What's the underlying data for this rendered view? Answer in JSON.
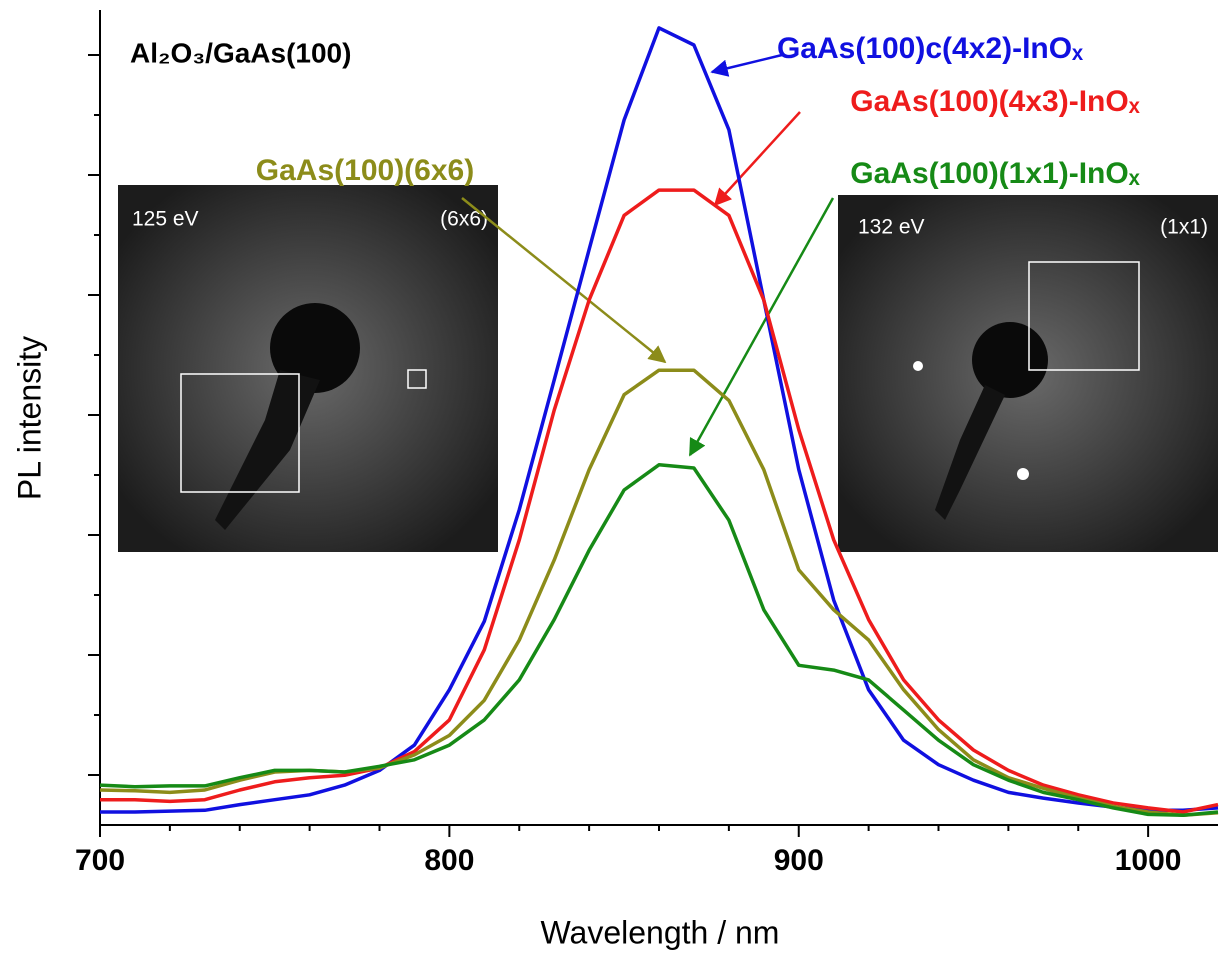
{
  "chart_data": {
    "type": "line",
    "annotation": "Al₂O₃/GaAs(100)",
    "x_label": "Wavelength / nm",
    "y_label": "PL intensity",
    "x": [
      700,
      710,
      720,
      730,
      740,
      750,
      760,
      770,
      780,
      790,
      800,
      810,
      820,
      830,
      840,
      850,
      860,
      870,
      880,
      890,
      900,
      910,
      920,
      930,
      940,
      950,
      960,
      970,
      980,
      990,
      1000,
      1010,
      1020
    ],
    "series": [
      {
        "name": "GaAs(100)c(4x2)-InOₓ",
        "color": "#1010e0",
        "values": [
          1.6,
          1.6,
          1.7,
          1.8,
          2.5,
          3.1,
          3.7,
          4.9,
          6.7,
          9.8,
          16.6,
          25,
          38.7,
          54.6,
          70.6,
          86.5,
          97.8,
          95.7,
          85.3,
          64.4,
          43.6,
          27.6,
          16.6,
          10.4,
          7.4,
          5.5,
          4,
          3.3,
          2.7,
          2.2,
          1.8,
          1.8,
          2.1
        ]
      },
      {
        "name": "GaAs(100)(4x3)-InOₓ",
        "color": "#ee1c1c",
        "values": [
          3.1,
          3.1,
          2.9,
          3.1,
          4.3,
          5.3,
          5.8,
          6.1,
          7,
          9,
          12.9,
          21.5,
          35,
          50.9,
          64.4,
          74.8,
          77.9,
          77.9,
          74.8,
          64.4,
          48.5,
          35,
          25.2,
          17.8,
          12.9,
          9.2,
          6.7,
          4.9,
          3.7,
          2.7,
          2.1,
          1.6,
          2.5
        ]
      },
      {
        "name": "GaAs(100)(6x6)",
        "color": "#8c8c1a",
        "values": [
          4.3,
          4.2,
          4,
          4.3,
          5.5,
          6.5,
          6.7,
          6.5,
          7,
          8.6,
          11,
          15.3,
          22.7,
          32.5,
          43.6,
          52.8,
          55.8,
          55.8,
          52.1,
          43.6,
          31.3,
          26.4,
          22.7,
          16.6,
          11.7,
          8,
          5.8,
          4.5,
          3.3,
          2.3,
          1.6,
          1.2,
          1.5
        ]
      },
      {
        "name": "GaAs(100)(1x1)-InOₓ",
        "color": "#168a16",
        "values": [
          4.9,
          4.7,
          4.8,
          4.8,
          5.8,
          6.7,
          6.7,
          6.5,
          7.2,
          8,
          9.8,
          12.9,
          17.8,
          25.2,
          33.7,
          41.1,
          44.2,
          43.8,
          37.4,
          26.4,
          19.6,
          19,
          17.8,
          14.1,
          10.4,
          7.4,
          5.5,
          4,
          3.1,
          2.1,
          1.3,
          1.2,
          1.6
        ]
      }
    ],
    "xlim": [
      700,
      1020
    ],
    "xticks": [
      700,
      800,
      900,
      1000
    ],
    "ylim": [
      0,
      100
    ],
    "insets": [
      {
        "energy": "125 eV",
        "pattern": "(6x6)"
      },
      {
        "energy": "132 eV",
        "pattern": "(1x1)"
      }
    ]
  }
}
